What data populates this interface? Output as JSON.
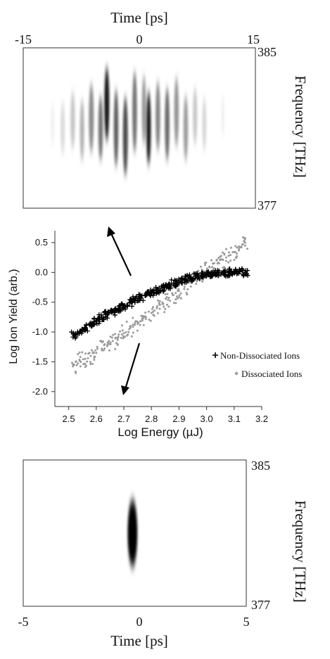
{
  "chart_data": [
    {
      "type": "heatmap",
      "title": "Time [ps]",
      "xlabel": "Time [ps]",
      "ylabel": "Frequency [THz]",
      "xlim": [
        -15,
        15
      ],
      "ylim": [
        377,
        385
      ],
      "x_ticks": [
        "-15",
        "0",
        "15"
      ],
      "y_ticks": [
        "385",
        "377"
      ],
      "bands": [
        {
          "t": -11.2,
          "f": 381.2,
          "intensity": 0.06,
          "width": 0.22,
          "height": 2.2
        },
        {
          "t": -9.9,
          "f": 381.0,
          "intensity": 0.14,
          "width": 0.28,
          "height": 2.6
        },
        {
          "t": -8.6,
          "f": 381.4,
          "intensity": 0.22,
          "width": 0.3,
          "height": 2.8
        },
        {
          "t": -7.4,
          "f": 380.9,
          "intensity": 0.3,
          "width": 0.28,
          "height": 3.0
        },
        {
          "t": -6.2,
          "f": 381.5,
          "intensity": 0.45,
          "width": 0.32,
          "height": 3.4
        },
        {
          "t": -5.0,
          "f": 381.0,
          "intensity": 0.55,
          "width": 0.3,
          "height": 3.2
        },
        {
          "t": -4.2,
          "f": 382.2,
          "intensity": 0.9,
          "width": 0.32,
          "height": 3.6
        },
        {
          "t": -3.0,
          "f": 381.0,
          "intensity": 0.62,
          "width": 0.3,
          "height": 3.8
        },
        {
          "t": -1.8,
          "f": 380.6,
          "intensity": 0.7,
          "width": 0.32,
          "height": 3.9
        },
        {
          "t": -0.6,
          "f": 381.8,
          "intensity": 0.55,
          "width": 0.3,
          "height": 4.0
        },
        {
          "t": 0.6,
          "f": 381.9,
          "intensity": 0.4,
          "width": 0.28,
          "height": 3.4
        },
        {
          "t": 1.2,
          "f": 381.0,
          "intensity": 0.88,
          "width": 0.3,
          "height": 3.6
        },
        {
          "t": 2.4,
          "f": 381.6,
          "intensity": 0.48,
          "width": 0.3,
          "height": 3.4
        },
        {
          "t": 3.6,
          "f": 381.2,
          "intensity": 0.58,
          "width": 0.3,
          "height": 3.6
        },
        {
          "t": 4.8,
          "f": 381.8,
          "intensity": 0.42,
          "width": 0.3,
          "height": 3.4
        },
        {
          "t": 6.0,
          "f": 381.0,
          "intensity": 0.38,
          "width": 0.3,
          "height": 3.2
        },
        {
          "t": 7.2,
          "f": 381.6,
          "intensity": 0.22,
          "width": 0.28,
          "height": 2.8
        },
        {
          "t": 8.4,
          "f": 381.2,
          "intensity": 0.16,
          "width": 0.26,
          "height": 2.6
        },
        {
          "t": 10.8,
          "f": 381.6,
          "intensity": 0.06,
          "width": 0.22,
          "height": 2.0
        }
      ]
    },
    {
      "type": "scatter",
      "xlabel": "Log Energy (µJ)",
      "ylabel": "Log Ion Yield (arb.)",
      "xlim": [
        2.45,
        3.2
      ],
      "ylim": [
        -2.25,
        0.7
      ],
      "x_ticks": [
        "2.5",
        "2.6",
        "2.7",
        "2.8",
        "2.9",
        "3.0",
        "3.1",
        "3.2"
      ],
      "y_ticks": [
        "0.5",
        "0.0",
        "-0.5",
        "-1.0",
        "-1.5",
        "-2.0"
      ],
      "series": [
        {
          "name": "Non-Dissociated Ions",
          "marker": "plus",
          "color": "#000000",
          "x": [
            2.52,
            2.54,
            2.56,
            2.58,
            2.6,
            2.62,
            2.64,
            2.66,
            2.68,
            2.7,
            2.72,
            2.74,
            2.76,
            2.78,
            2.8,
            2.82,
            2.84,
            2.86,
            2.88,
            2.9,
            2.92,
            2.94,
            2.96,
            2.98,
            3.0,
            3.02,
            3.04,
            3.06,
            3.08,
            3.1,
            3.12,
            3.14
          ],
          "y": [
            -1.05,
            -1.0,
            -0.93,
            -0.87,
            -0.82,
            -0.76,
            -0.71,
            -0.66,
            -0.61,
            -0.56,
            -0.51,
            -0.46,
            -0.42,
            -0.38,
            -0.34,
            -0.3,
            -0.26,
            -0.22,
            -0.18,
            -0.15,
            -0.12,
            -0.09,
            -0.07,
            -0.05,
            -0.03,
            -0.02,
            -0.01,
            -0.01,
            0.0,
            0.0,
            0.01,
            0.0
          ]
        },
        {
          "name": "Dissociated Ions",
          "marker": "dot",
          "color": "#9a9a9a",
          "x": [
            2.52,
            2.54,
            2.56,
            2.58,
            2.6,
            2.62,
            2.64,
            2.66,
            2.68,
            2.7,
            2.72,
            2.74,
            2.76,
            2.78,
            2.8,
            2.82,
            2.84,
            2.86,
            2.88,
            2.9,
            2.92,
            2.94,
            2.96,
            2.98,
            3.0,
            3.02,
            3.04,
            3.06,
            3.08,
            3.1,
            3.12,
            3.14
          ],
          "y": [
            -1.55,
            -1.48,
            -1.45,
            -1.4,
            -1.35,
            -1.28,
            -1.22,
            -1.15,
            -1.08,
            -1.02,
            -0.95,
            -0.88,
            -0.82,
            -0.75,
            -0.68,
            -0.6,
            -0.53,
            -0.46,
            -0.38,
            -0.31,
            -0.24,
            -0.17,
            -0.1,
            -0.04,
            0.03,
            0.09,
            0.15,
            0.21,
            0.28,
            0.34,
            0.42,
            0.5
          ]
        }
      ],
      "legend": "right",
      "arrows": [
        "up-left to upper plot",
        "down-left to lower plot"
      ]
    },
    {
      "type": "heatmap",
      "xlabel": "Time [ps]",
      "ylabel": "Frequency [THz]",
      "xlim": [
        -5,
        5
      ],
      "ylim": [
        377,
        385
      ],
      "x_ticks": [
        "-5",
        "0",
        "5"
      ],
      "y_ticks": [
        "385",
        "377"
      ],
      "bands": [
        {
          "t": -0.1,
          "f": 381.0,
          "intensity": 1.0,
          "width": 0.22,
          "height": 3.6
        }
      ]
    }
  ]
}
